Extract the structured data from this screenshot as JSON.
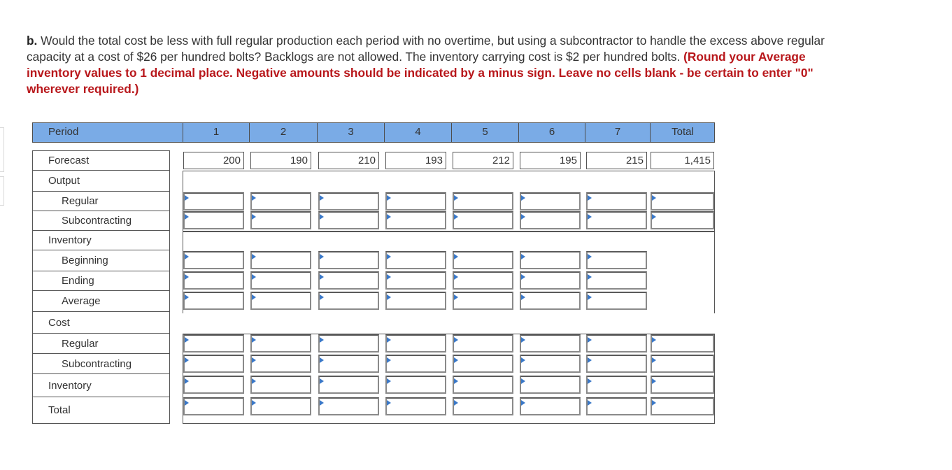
{
  "question": {
    "part_label": "b.",
    "text": " Would the total cost be less with full regular production each period with no overtime, but using a subcontractor to handle the excess above regular capacity at a cost of $26 per hundred bolts? Backlogs are not allowed. The inventory carrying cost is $2 per hundred bolts. ",
    "instruction": "(Round your Average inventory values to 1 decimal place. Negative amounts should be indicated by a minus sign. Leave no cells blank - be certain to enter \"0\" wherever required.)"
  },
  "table": {
    "header": {
      "period_label": "Period",
      "columns": [
        "1",
        "2",
        "3",
        "4",
        "5",
        "6",
        "7",
        "Total"
      ]
    },
    "forecast": {
      "label": "Forecast",
      "values": [
        "200",
        "190",
        "210",
        "193",
        "212",
        "195",
        "215",
        "1,415"
      ]
    },
    "rows": {
      "output": "Output",
      "regular": "Regular",
      "subcontracting": "Subcontracting",
      "inventory": "Inventory",
      "beginning": "Beginning",
      "ending": "Ending",
      "average": "Average",
      "cost": "Cost",
      "cost_regular": "Regular",
      "cost_subcontracting": "Subcontracting",
      "cost_inventory": "Inventory",
      "total": "Total"
    },
    "colors": {
      "header_bg": "#7aabe6",
      "instruction_red": "#b8171b",
      "input_marker": "#3a78c8"
    }
  }
}
